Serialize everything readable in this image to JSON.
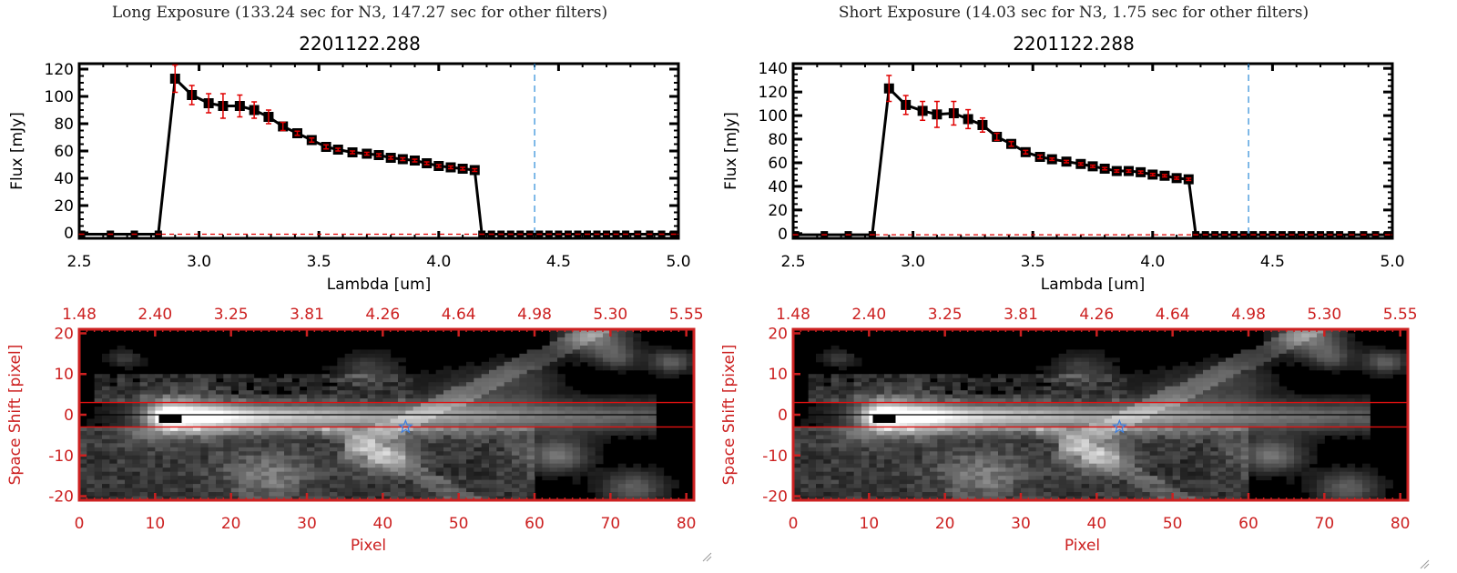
{
  "panels": [
    {
      "title": "Long Exposure (133.24 sec for N3, 147.27 sec for other filters)",
      "object_id": "2201122.288"
    },
    {
      "title": "Short Exposure (14.03 sec for N3, 1.75 sec for other filters)",
      "object_id": "2201122.288"
    }
  ],
  "colors": {
    "line": "#000000",
    "errorbar": "#e00000",
    "marker_fill": "#000000",
    "marker_center": "#e00000",
    "vline": "#2a8ad8",
    "hline_zero": "#e00000",
    "image_axes": "#cc2020",
    "star": "#3a7ee0"
  },
  "chart_data": [
    {
      "type": "line",
      "panel": "long-exposure-spectrum",
      "title": "2201122.288",
      "xlabel": "Lambda [um]",
      "ylabel": "Flux [mJy]",
      "xlim": [
        2.5,
        5.0
      ],
      "ylim": [
        -4,
        124
      ],
      "xticks": [
        "2.5",
        "3.0",
        "3.5",
        "4.0",
        "4.5",
        "5.0"
      ],
      "xtick_values": [
        2.5,
        3.0,
        3.5,
        4.0,
        4.5,
        5.0
      ],
      "yticks": [
        "0",
        "20",
        "40",
        "60",
        "80",
        "100",
        "120"
      ],
      "ytick_values": [
        0,
        20,
        40,
        60,
        80,
        100,
        120
      ],
      "vline_x": 4.4,
      "zero_line": true,
      "x": [
        2.51,
        2.63,
        2.73,
        2.83,
        2.9,
        2.97,
        3.04,
        3.1,
        3.17,
        3.23,
        3.29,
        3.35,
        3.41,
        3.47,
        3.53,
        3.58,
        3.64,
        3.7,
        3.75,
        3.8,
        3.85,
        3.9,
        3.95,
        4.0,
        4.05,
        4.1,
        4.15,
        4.18,
        4.22,
        4.26,
        4.3,
        4.34,
        4.38,
        4.42,
        4.46,
        4.5,
        4.54,
        4.58,
        4.62,
        4.66,
        4.7,
        4.74,
        4.78,
        4.83,
        4.88,
        4.93,
        4.98
      ],
      "y": [
        -1,
        -1,
        -1,
        -1,
        113,
        101,
        95,
        93,
        93,
        90,
        85,
        78,
        73,
        68,
        63,
        61,
        59,
        58,
        57,
        55,
        54,
        53,
        51,
        49,
        48,
        47,
        46,
        -1,
        -1,
        -1,
        -1,
        -1,
        -1,
        -1,
        -1,
        -1,
        -1,
        -1,
        -1,
        -1,
        -1,
        -1,
        -1,
        -1,
        -1,
        -1,
        -1
      ],
      "yerr": [
        0,
        0,
        0,
        0,
        10,
        7,
        7,
        9,
        8,
        6,
        5,
        3,
        1.5,
        1.5,
        1.5,
        1,
        1,
        1,
        1,
        1,
        1,
        1,
        1,
        1,
        1,
        1,
        1,
        0,
        0,
        0,
        0,
        0,
        0,
        0,
        0,
        0,
        0,
        0,
        0,
        0,
        0,
        0,
        0,
        0,
        0,
        0,
        0
      ]
    },
    {
      "type": "line",
      "panel": "short-exposure-spectrum",
      "title": "2201122.288",
      "xlabel": "Lambda [um]",
      "ylabel": "Flux [mJy]",
      "xlim": [
        2.5,
        5.0
      ],
      "ylim": [
        -4,
        144
      ],
      "xticks": [
        "2.5",
        "3.0",
        "3.5",
        "4.0",
        "4.5",
        "5.0"
      ],
      "xtick_values": [
        2.5,
        3.0,
        3.5,
        4.0,
        4.5,
        5.0
      ],
      "yticks": [
        "0",
        "20",
        "40",
        "60",
        "80",
        "100",
        "120",
        "140"
      ],
      "ytick_values": [
        0,
        20,
        40,
        60,
        80,
        100,
        120,
        140
      ],
      "vline_x": 4.4,
      "zero_line": true,
      "x": [
        2.51,
        2.63,
        2.73,
        2.83,
        2.9,
        2.97,
        3.04,
        3.1,
        3.17,
        3.23,
        3.29,
        3.35,
        3.41,
        3.47,
        3.53,
        3.58,
        3.64,
        3.7,
        3.75,
        3.8,
        3.85,
        3.9,
        3.95,
        4.0,
        4.05,
        4.1,
        4.15,
        4.18,
        4.22,
        4.26,
        4.3,
        4.34,
        4.38,
        4.42,
        4.46,
        4.5,
        4.54,
        4.58,
        4.62,
        4.66,
        4.7,
        4.74,
        4.78,
        4.83,
        4.88,
        4.93,
        4.98
      ],
      "y": [
        -1,
        -1,
        -1,
        -1,
        123,
        109,
        104,
        101,
        102,
        97,
        92,
        82,
        76,
        69,
        65,
        63,
        61,
        59,
        57,
        55,
        53,
        53,
        52,
        50,
        49,
        47,
        46,
        -1,
        -1,
        -1,
        -1,
        -1,
        -1,
        -1,
        -1,
        -1,
        -1,
        -1,
        -1,
        -1,
        -1,
        -1,
        -1,
        -1,
        -1,
        -1,
        -1
      ],
      "yerr": [
        0,
        0,
        0,
        0,
        11,
        8,
        8,
        11,
        10,
        8,
        6,
        3,
        2,
        1.5,
        1.5,
        1,
        1,
        1,
        1,
        1,
        1,
        1,
        1,
        1,
        1,
        1,
        1,
        0,
        0,
        0,
        0,
        0,
        0,
        0,
        0,
        0,
        0,
        0,
        0,
        0,
        0,
        0,
        0,
        0,
        0,
        0,
        0
      ]
    },
    {
      "type": "heatmap",
      "panel": "long-exposure-image",
      "xlabel": "Pixel",
      "ylabel": "Space Shift [pixel]",
      "xlim": [
        0,
        81
      ],
      "ylim": [
        -21,
        21
      ],
      "xticks": [
        "0",
        "10",
        "20",
        "30",
        "40",
        "50",
        "60",
        "70",
        "80"
      ],
      "xtick_values": [
        0,
        10,
        20,
        30,
        40,
        50,
        60,
        70,
        80
      ],
      "yticks": [
        "-20",
        "-10",
        "0",
        "10",
        "20"
      ],
      "ytick_values": [
        -20,
        -10,
        0,
        10,
        20
      ],
      "top_axis_label_values": [
        "1.48",
        "2.40",
        "3.25",
        "3.81",
        "4.26",
        "4.64",
        "4.98",
        "5.30",
        "5.55"
      ],
      "aperture_lines_y": [
        3,
        -3
      ],
      "center_line_y": 0,
      "star_marker": [
        43,
        -3
      ],
      "source_peak": [
        12,
        -0.5
      ]
    },
    {
      "type": "heatmap",
      "panel": "short-exposure-image",
      "xlabel": "Pixel",
      "ylabel": "Space Shift [pixel]",
      "xlim": [
        0,
        81
      ],
      "ylim": [
        -21,
        21
      ],
      "xticks": [
        "0",
        "10",
        "20",
        "30",
        "40",
        "50",
        "60",
        "70",
        "80"
      ],
      "xtick_values": [
        0,
        10,
        20,
        30,
        40,
        50,
        60,
        70,
        80
      ],
      "yticks": [
        "-20",
        "-10",
        "0",
        "10",
        "20"
      ],
      "ytick_values": [
        -20,
        -10,
        0,
        10,
        20
      ],
      "top_axis_label_values": [
        "1.48",
        "2.40",
        "3.25",
        "3.81",
        "4.26",
        "4.64",
        "4.98",
        "5.30",
        "5.55"
      ],
      "aperture_lines_y": [
        3,
        -3
      ],
      "center_line_y": 0,
      "star_marker": [
        43,
        -3
      ],
      "source_peak": [
        12,
        -0.5
      ]
    }
  ]
}
